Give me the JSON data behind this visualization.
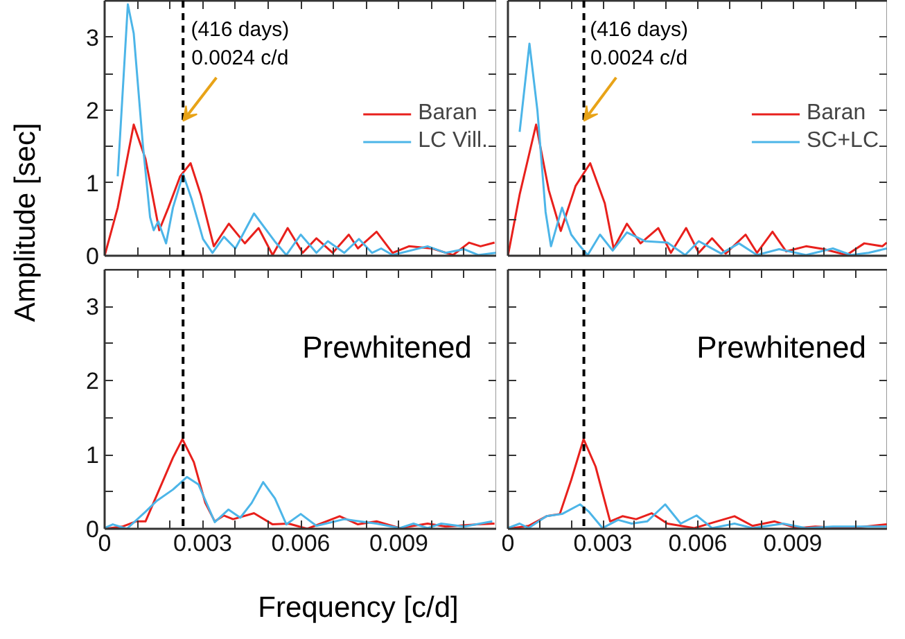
{
  "chart_data": [
    {
      "type": "line",
      "ylabel": "Amplitude [sec]",
      "xlim": [
        0,
        0.012
      ],
      "ylim": [
        0,
        3.5
      ],
      "xticks": [
        0,
        {
          "value": 0.001,
          "label": null
        },
        {
          "value": 0.002,
          "label": null
        },
        0.003,
        {
          "value": 0.004,
          "label": null
        },
        {
          "value": 0.005,
          "label": null
        },
        0.006,
        {
          "value": 0.007,
          "label": null
        },
        {
          "value": 0.008,
          "label": null
        },
        0.009,
        {
          "value": 0.01,
          "label": null
        },
        {
          "value": 0.011,
          "label": null
        }
      ],
      "yticks": [
        0,
        {
          "value": 0.5,
          "label": null
        },
        1,
        {
          "value": 1.5,
          "label": null
        },
        2,
        {
          "value": 2.5,
          "label": null
        },
        3
      ],
      "tick_labels": "y",
      "legend": "right",
      "grid": false,
      "ref_lines": [
        {
          "axis": "x",
          "value": 0.0024,
          "color": "#000000",
          "line_style": "dashed"
        }
      ],
      "annotations": [
        {
          "text": "(416 days)\n0.0024 c/d",
          "x": 0.0024,
          "y": 1.85
        }
      ],
      "series": [
        {
          "name": "Baran",
          "color": "#e8201c",
          "x": [
            0,
            0.0004,
            0.00089,
            0.00125,
            0.00167,
            0.00195,
            0.00231,
            0.00263,
            0.00294,
            0.00334,
            0.0038,
            0.00429,
            0.00471,
            0.00514,
            0.0056,
            0.00606,
            0.00648,
            0.00698,
            0.00747,
            0.00775,
            0.00832,
            0.00881,
            0.00931,
            0.01002,
            0.01066,
            0.01115,
            0.0115,
            0.01193
          ],
          "values": [
            0,
            0.66,
            1.8,
            1.33,
            0.35,
            0.66,
            1.09,
            1.27,
            0.84,
            0.13,
            0.44,
            0.17,
            0.38,
            0.01,
            0.38,
            0.04,
            0.24,
            0.04,
            0.29,
            0.1,
            0.33,
            0.04,
            0.13,
            0.1,
            0.01,
            0.18,
            0.13,
            0.18
          ]
        },
        {
          "name": "LC Vill.",
          "color": "#4cb5e8",
          "x": [
            0.0004,
            0.00071,
            0.00089,
            0.00117,
            0.00139,
            0.0015,
            0.00164,
            0.00188,
            0.00209,
            0.0024,
            0.00266,
            0.00301,
            0.0033,
            0.00365,
            0.004,
            0.00457,
            0.0052,
            0.00556,
            0.006,
            0.00648,
            0.00683,
            0.00733,
            0.00778,
            0.00818,
            0.00846,
            0.00881,
            0.00988,
            0.01044,
            0.011,
            0.01143,
            0.01197
          ],
          "values": [
            1.09,
            3.45,
            3.05,
            1.52,
            0.53,
            0.35,
            0.47,
            0.17,
            0.66,
            1.12,
            0.78,
            0.23,
            0.04,
            0.26,
            0.1,
            0.58,
            0.2,
            0.01,
            0.29,
            0.04,
            0.2,
            0.04,
            0.23,
            0.04,
            0.1,
            0.01,
            0.13,
            0.04,
            0.09,
            0.01,
            0.04
          ]
        }
      ]
    },
    {
      "type": "line",
      "xlim": [
        0,
        0.012
      ],
      "ylim": [
        0,
        3.5
      ],
      "xticks": [
        0,
        {
          "value": 0.001,
          "label": null
        },
        {
          "value": 0.002,
          "label": null
        },
        0.003,
        {
          "value": 0.004,
          "label": null
        },
        {
          "value": 0.005,
          "label": null
        },
        0.006,
        {
          "value": 0.007,
          "label": null
        },
        {
          "value": 0.008,
          "label": null
        },
        0.009,
        {
          "value": 0.01,
          "label": null
        },
        {
          "value": 0.011,
          "label": null
        }
      ],
      "yticks": [
        0,
        {
          "value": 0.5,
          "label": null
        },
        1,
        {
          "value": 1.5,
          "label": null
        },
        2,
        {
          "value": 2.5,
          "label": null
        },
        3
      ],
      "tick_labels": false,
      "legend": "right",
      "grid": false,
      "ref_lines": [
        {
          "axis": "x",
          "value": 0.0024,
          "color": "#000000",
          "line_style": "dashed"
        }
      ],
      "annotations": [
        {
          "text": "(416 days)\n0.0024 c/d",
          "x": 0.0024,
          "y": 1.85
        }
      ],
      "series": [
        {
          "name": "Baran",
          "color": "#e8201c",
          "x": [
            0,
            0.00037,
            0.00089,
            0.00129,
            0.00167,
            0.00214,
            0.0026,
            0.00306,
            0.00334,
            0.00376,
            0.00419,
            0.00475,
            0.00515,
            0.00563,
            0.00603,
            0.00645,
            0.00688,
            0.00751,
            0.00787,
            0.00836,
            0.00879,
            0.00942,
            0.00999,
            0.0107,
            0.01126,
            0.01183,
            0.01197
          ],
          "values": [
            0,
            0.84,
            1.8,
            0.9,
            0.34,
            0.96,
            1.27,
            0.72,
            0.1,
            0.44,
            0.17,
            0.38,
            0.04,
            0.38,
            0.04,
            0.24,
            0.03,
            0.29,
            0.04,
            0.33,
            0.06,
            0.13,
            0.09,
            0.01,
            0.17,
            0.13,
            0.18
          ]
        },
        {
          "name": "SC+LC",
          "color": "#4cb5e8",
          "x": [
            0.00037,
            0.00068,
            0.00093,
            0.00119,
            0.00136,
            0.00171,
            0.002,
            0.00228,
            0.00252,
            0.00291,
            0.00331,
            0.00376,
            0.00433,
            0.00504,
            0.0056,
            0.00603,
            0.00674,
            0.0073,
            0.00787,
            0.00857,
            0.00942,
            0.01027,
            0.01084,
            0.0114,
            0.01197
          ],
          "values": [
            1.7,
            2.91,
            2.0,
            0.6,
            0.13,
            0.66,
            0.29,
            0.13,
            0.01,
            0.29,
            0.07,
            0.32,
            0.2,
            0.18,
            0.01,
            0.2,
            0.03,
            0.17,
            0.01,
            0.09,
            0.01,
            0.1,
            0.01,
            0.04,
            0.1
          ]
        }
      ]
    },
    {
      "type": "line",
      "xlabel": "Frequency [c/d]",
      "xlim": [
        0,
        0.012
      ],
      "ylim": [
        0,
        3.5
      ],
      "xticks": [
        0,
        {
          "value": 0.001,
          "label": null
        },
        {
          "value": 0.002,
          "label": null
        },
        0.003,
        {
          "value": 0.004,
          "label": null
        },
        {
          "value": 0.005,
          "label": null
        },
        0.006,
        {
          "value": 0.007,
          "label": null
        },
        {
          "value": 0.008,
          "label": null
        },
        0.009,
        {
          "value": 0.01,
          "label": null
        },
        {
          "value": 0.011,
          "label": null
        }
      ],
      "yticks": [
        0,
        {
          "value": 0.5,
          "label": null
        },
        1,
        {
          "value": 1.5,
          "label": null
        },
        2,
        {
          "value": 2.5,
          "label": null
        },
        3
      ],
      "grid": false,
      "ref_lines": [
        {
          "axis": "x",
          "value": 0.0024,
          "color": "#000000",
          "line_style": "dashed"
        }
      ],
      "annotations": [
        "Prewhitened"
      ],
      "series": [
        {
          "color": "#e8201c",
          "x": [
            0,
            0.00054,
            0.00096,
            0.00125,
            0.00167,
            0.00209,
            0.00238,
            0.00273,
            0.00308,
            0.00337,
            0.00365,
            0.00393,
            0.00457,
            0.00514,
            0.00563,
            0.0062,
            0.00719,
            0.00775,
            0.00832,
            0.00903,
            0.00988,
            0.01044,
            0.01143,
            0.01193
          ],
          "values": [
            0,
            0.03,
            0.1,
            0.1,
            0.53,
            0.96,
            1.21,
            0.9,
            0.35,
            0.1,
            0.18,
            0.13,
            0.21,
            0.06,
            0.07,
            0,
            0.17,
            0.06,
            0.1,
            0.01,
            0.07,
            0.03,
            0.06,
            0.07
          ]
        },
        {
          "color": "#4cb5e8",
          "x": [
            0,
            0.00025,
            0.00068,
            0.00125,
            0.0016,
            0.00209,
            0.00252,
            0.00287,
            0.00337,
            0.00379,
            0.00415,
            0.0045,
            0.00485,
            0.00521,
            0.00556,
            0.006,
            0.00648,
            0.00733,
            0.00832,
            0.00903,
            0.00945,
            0.00988,
            0.0103,
            0.011,
            0.01186
          ],
          "values": [
            0.01,
            0.06,
            0,
            0.23,
            0.38,
            0.53,
            0.7,
            0.6,
            0.09,
            0.26,
            0.15,
            0.35,
            0.63,
            0.41,
            0.06,
            0.2,
            0.04,
            0.13,
            0.07,
            0.01,
            0.07,
            0.01,
            0.07,
            0.03,
            0.1
          ]
        }
      ]
    },
    {
      "type": "line",
      "xlim": [
        0,
        0.012
      ],
      "ylim": [
        0,
        3.5
      ],
      "xticks": [
        0,
        {
          "value": 0.001,
          "label": null
        },
        {
          "value": 0.002,
          "label": null
        },
        0.003,
        {
          "value": 0.004,
          "label": null
        },
        {
          "value": 0.005,
          "label": null
        },
        0.006,
        {
          "value": 0.007,
          "label": null
        },
        {
          "value": 0.008,
          "label": null
        },
        0.009,
        {
          "value": 0.01,
          "label": null
        },
        {
          "value": 0.011,
          "label": null
        }
      ],
      "yticks": [
        0,
        {
          "value": 0.5,
          "label": null
        },
        1,
        {
          "value": 1.5,
          "label": null
        },
        2,
        {
          "value": 2.5,
          "label": null
        },
        3
      ],
      "tick_labels": "x",
      "grid": false,
      "ref_lines": [
        {
          "axis": "x",
          "value": 0.0024,
          "color": "#000000",
          "line_style": "dashed"
        }
      ],
      "annotations": [
        "Prewhitened"
      ],
      "series": [
        {
          "color": "#e8201c",
          "x": [
            0,
            0.00065,
            0.00122,
            0.00164,
            0.002,
            0.00239,
            0.00277,
            0.00323,
            0.00362,
            0.00405,
            0.00454,
            0.00504,
            0.00589,
            0.00716,
            0.00773,
            0.00843,
            0.00914,
            0.00971,
            0.01084,
            0.01197
          ],
          "values": [
            0,
            0.04,
            0.17,
            0.2,
            0.66,
            1.21,
            0.84,
            0.1,
            0.17,
            0.13,
            0.21,
            0.07,
            0.01,
            0.17,
            0.04,
            0.1,
            0.01,
            0.03,
            0.01,
            0.06
          ]
        },
        {
          "color": "#4cb5e8",
          "x": [
            0,
            0.00037,
            0.00065,
            0.00122,
            0.00171,
            0.00228,
            0.00256,
            0.00299,
            0.00348,
            0.00391,
            0.0044,
            0.00497,
            0.00546,
            0.00596,
            0.00645,
            0.00716,
            0.00773,
            0.0087,
            0.00942,
            0.01027,
            0.01197
          ],
          "values": [
            0.01,
            0.07,
            0.01,
            0.17,
            0.2,
            0.33,
            0.23,
            0.01,
            0.12,
            0.07,
            0.1,
            0.33,
            0.07,
            0.18,
            0.01,
            0.07,
            0.01,
            0.07,
            0.01,
            0.03,
            0.03
          ]
        }
      ]
    }
  ]
}
